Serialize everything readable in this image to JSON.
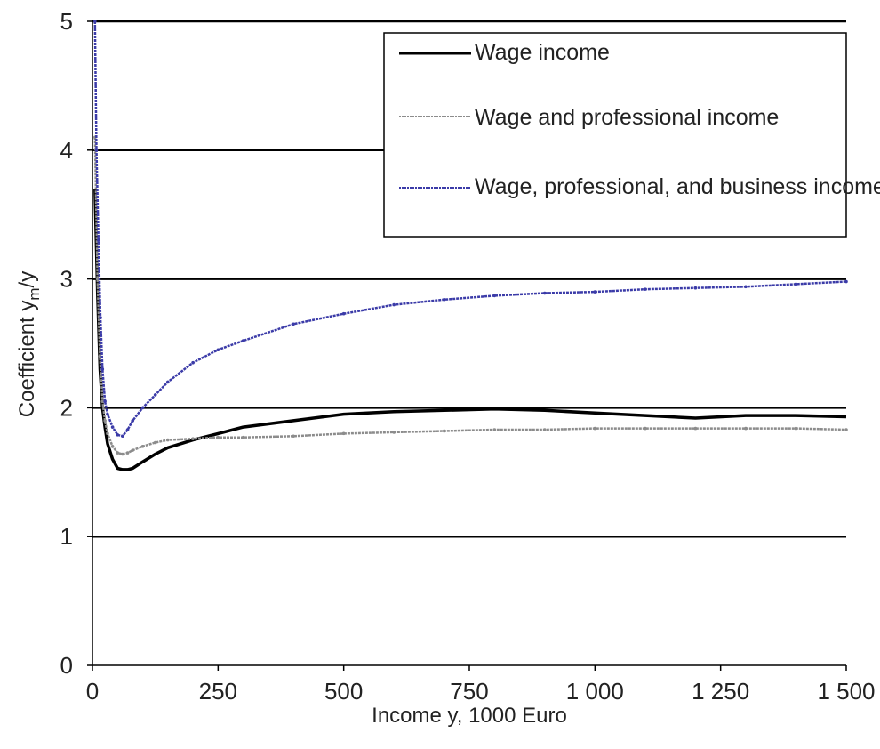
{
  "chart_data": {
    "type": "line",
    "xlabel": "Income y, 1000 Euro",
    "ylabel": "Coefficient y_m/y",
    "ylabel_parts": {
      "main": "Coefficient ",
      "sub": "m",
      "tail": "/y",
      "y_letter": "y"
    },
    "xlim": [
      0,
      1500
    ],
    "ylim": [
      0,
      5
    ],
    "x_ticks": [
      0,
      250,
      500,
      750,
      1000,
      1250,
      1500
    ],
    "x_tick_labels": [
      "0",
      "250",
      "500",
      "750",
      "1 000",
      "1 250",
      "1 500"
    ],
    "y_ticks": [
      0,
      1,
      2,
      3,
      4,
      5
    ],
    "y_tick_labels": [
      "0",
      "1",
      "2",
      "3",
      "4",
      "5"
    ],
    "grid": "horizontal",
    "legend_position": "top-right",
    "series": [
      {
        "name": "Wage income",
        "color": "#000000",
        "style": "solid",
        "x": [
          5,
          10,
          15,
          20,
          25,
          30,
          40,
          50,
          60,
          70,
          80,
          100,
          125,
          150,
          200,
          250,
          300,
          400,
          500,
          600,
          700,
          800,
          900,
          1000,
          1100,
          1200,
          1300,
          1400,
          1500
        ],
        "y": [
          3.7,
          2.9,
          2.3,
          2.0,
          1.85,
          1.72,
          1.6,
          1.53,
          1.52,
          1.52,
          1.53,
          1.58,
          1.64,
          1.69,
          1.75,
          1.8,
          1.85,
          1.9,
          1.95,
          1.97,
          1.98,
          1.99,
          1.98,
          1.96,
          1.94,
          1.92,
          1.94,
          1.94,
          1.93
        ]
      },
      {
        "name": "Wage and professional income",
        "color": "#8c8c8c",
        "style": "marked",
        "x": [
          5,
          10,
          15,
          20,
          25,
          30,
          40,
          50,
          60,
          70,
          80,
          100,
          125,
          150,
          200,
          250,
          300,
          400,
          500,
          600,
          700,
          800,
          900,
          1000,
          1100,
          1200,
          1300,
          1400,
          1500
        ],
        "y": [
          4.1,
          3.0,
          2.4,
          2.05,
          1.9,
          1.8,
          1.7,
          1.65,
          1.64,
          1.65,
          1.67,
          1.7,
          1.73,
          1.75,
          1.76,
          1.77,
          1.77,
          1.78,
          1.8,
          1.81,
          1.82,
          1.83,
          1.83,
          1.84,
          1.84,
          1.84,
          1.84,
          1.84,
          1.83
        ]
      },
      {
        "name": "Wage, professional, and business income",
        "color": "#3b3ba8",
        "style": "marked",
        "x": [
          5,
          8,
          12,
          16,
          20,
          25,
          30,
          40,
          50,
          60,
          70,
          80,
          100,
          125,
          150,
          200,
          250,
          300,
          400,
          500,
          600,
          700,
          800,
          900,
          1000,
          1100,
          1200,
          1300,
          1400,
          1500
        ],
        "y": [
          5.0,
          4.0,
          3.3,
          2.7,
          2.3,
          2.05,
          1.95,
          1.85,
          1.79,
          1.78,
          1.83,
          1.9,
          2.0,
          2.1,
          2.2,
          2.35,
          2.45,
          2.52,
          2.65,
          2.73,
          2.8,
          2.84,
          2.87,
          2.89,
          2.9,
          2.92,
          2.93,
          2.94,
          2.96,
          2.98
        ]
      }
    ]
  }
}
